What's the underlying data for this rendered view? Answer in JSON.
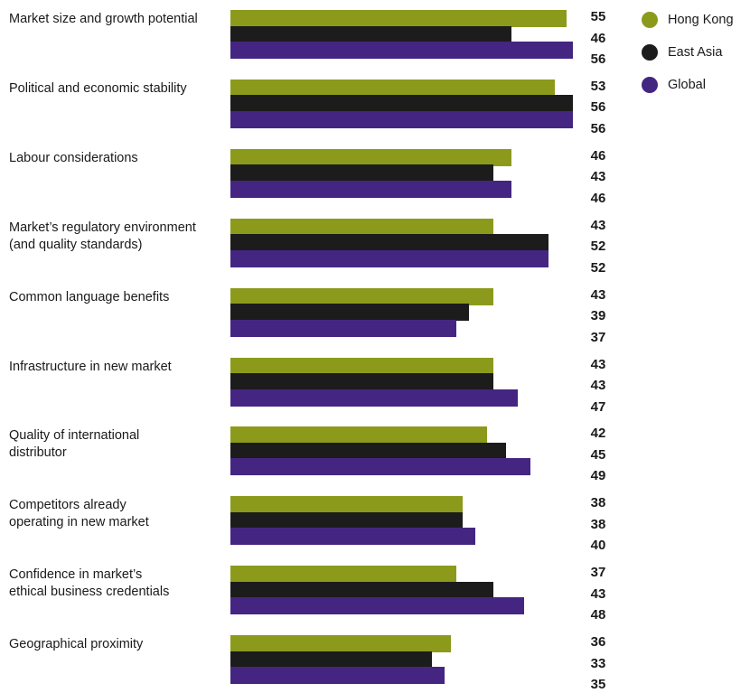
{
  "chart_data": {
    "type": "bar",
    "orientation": "horizontal",
    "categories": [
      "Market size and growth potential",
      "Political and economic stability",
      "Labour considerations",
      "Market’s regulatory environment\n(and quality standards)",
      "Common language benefits",
      "Infrastructure in new market",
      "Quality of international\ndistributor",
      "Competitors already\noperating in new market",
      "Confidence in market’s\nethical business credentials",
      "Geographical proximity"
    ],
    "series": [
      {
        "name": "Hong Kong",
        "color": "#8c9a1c",
        "values": [
          55,
          53,
          46,
          43,
          43,
          43,
          42,
          38,
          37,
          36
        ]
      },
      {
        "name": "East Asia",
        "color": "#1c1c1c",
        "values": [
          46,
          56,
          43,
          52,
          39,
          43,
          45,
          38,
          43,
          33
        ]
      },
      {
        "name": "Global",
        "color": "#442682",
        "values": [
          56,
          56,
          46,
          52,
          37,
          47,
          49,
          40,
          48,
          35
        ]
      }
    ],
    "xlim": [
      0,
      56
    ],
    "grid": false,
    "legend": "top-right",
    "title": "",
    "xlabel": "",
    "ylabel": ""
  }
}
